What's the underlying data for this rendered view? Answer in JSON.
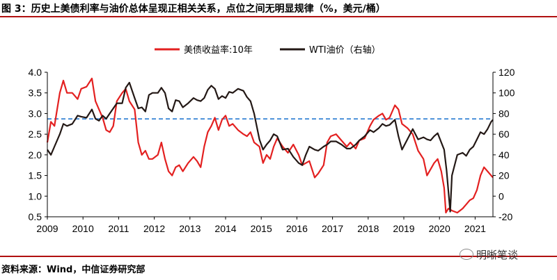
{
  "figure": {
    "title": "图 3：历史上美债利率与油价总体呈现正相关关系，点位之间无明显规律（%，美元/桶）",
    "source": "资料来源：Wind，中信证券研究部",
    "watermark": "明晰笔谈"
  },
  "chart_data": {
    "type": "line",
    "xlabel": "",
    "ylabel": "",
    "x_ticks": [
      "2009",
      "2010",
      "2011",
      "2012",
      "2013",
      "2014",
      "2015",
      "2016",
      "2017",
      "2018",
      "2019",
      "2020",
      "2021"
    ],
    "xlim": [
      2009.0,
      2021.5
    ],
    "ylim_left": [
      0.5,
      4.0
    ],
    "y_ticks_left": [
      "4.0",
      "3.5",
      "3.0",
      "2.5",
      "2.0",
      "1.5",
      "1.0",
      "0.5"
    ],
    "ylim_right": [
      -20,
      120
    ],
    "y_ticks_right": [
      "120",
      "100",
      "80",
      "60",
      "40",
      "20",
      "0",
      "-20"
    ],
    "grid": false,
    "legend_position": "top",
    "reference_line": {
      "axis": "left",
      "value": 2.87,
      "style": "dashed",
      "color": "#4a90d9"
    },
    "series": [
      {
        "name": "美债收益率:10年",
        "axis": "left",
        "color": "#e32020",
        "points": [
          [
            2009.0,
            2.3
          ],
          [
            2009.1,
            2.8
          ],
          [
            2009.2,
            2.7
          ],
          [
            2009.35,
            3.5
          ],
          [
            2009.45,
            3.8
          ],
          [
            2009.55,
            3.5
          ],
          [
            2009.7,
            3.5
          ],
          [
            2009.85,
            3.35
          ],
          [
            2009.95,
            3.6
          ],
          [
            2010.1,
            3.65
          ],
          [
            2010.25,
            3.85
          ],
          [
            2010.35,
            3.3
          ],
          [
            2010.45,
            3.1
          ],
          [
            2010.55,
            2.9
          ],
          [
            2010.65,
            2.6
          ],
          [
            2010.75,
            2.55
          ],
          [
            2010.85,
            2.7
          ],
          [
            2010.95,
            3.3
          ],
          [
            2011.1,
            3.5
          ],
          [
            2011.2,
            3.6
          ],
          [
            2011.3,
            3.3
          ],
          [
            2011.45,
            3.1
          ],
          [
            2011.55,
            2.3
          ],
          [
            2011.65,
            2.0
          ],
          [
            2011.75,
            2.1
          ],
          [
            2011.85,
            1.9
          ],
          [
            2011.95,
            1.9
          ],
          [
            2012.1,
            2.0
          ],
          [
            2012.2,
            2.3
          ],
          [
            2012.3,
            1.9
          ],
          [
            2012.4,
            1.6
          ],
          [
            2012.5,
            1.5
          ],
          [
            2012.6,
            1.7
          ],
          [
            2012.7,
            1.75
          ],
          [
            2012.8,
            1.6
          ],
          [
            2012.95,
            1.8
          ],
          [
            2013.1,
            1.95
          ],
          [
            2013.2,
            1.85
          ],
          [
            2013.3,
            1.7
          ],
          [
            2013.4,
            2.2
          ],
          [
            2013.5,
            2.55
          ],
          [
            2013.6,
            2.7
          ],
          [
            2013.7,
            2.9
          ],
          [
            2013.8,
            2.6
          ],
          [
            2013.9,
            2.85
          ],
          [
            2014.0,
            2.95
          ],
          [
            2014.1,
            2.7
          ],
          [
            2014.2,
            2.75
          ],
          [
            2014.35,
            2.6
          ],
          [
            2014.5,
            2.5
          ],
          [
            2014.6,
            2.45
          ],
          [
            2014.7,
            2.55
          ],
          [
            2014.8,
            2.3
          ],
          [
            2014.95,
            2.2
          ],
          [
            2015.05,
            1.8
          ],
          [
            2015.15,
            2.0
          ],
          [
            2015.25,
            1.9
          ],
          [
            2015.35,
            2.2
          ],
          [
            2015.45,
            2.4
          ],
          [
            2015.6,
            2.2
          ],
          [
            2015.75,
            2.05
          ],
          [
            2015.9,
            2.25
          ],
          [
            2016.05,
            2.0
          ],
          [
            2016.15,
            1.75
          ],
          [
            2016.25,
            1.8
          ],
          [
            2016.35,
            1.85
          ],
          [
            2016.5,
            1.45
          ],
          [
            2016.6,
            1.55
          ],
          [
            2016.75,
            1.75
          ],
          [
            2016.85,
            2.3
          ],
          [
            2016.95,
            2.45
          ],
          [
            2017.1,
            2.5
          ],
          [
            2017.25,
            2.35
          ],
          [
            2017.4,
            2.2
          ],
          [
            2017.5,
            2.3
          ],
          [
            2017.65,
            2.15
          ],
          [
            2017.75,
            2.35
          ],
          [
            2017.9,
            2.4
          ],
          [
            2018.05,
            2.7
          ],
          [
            2018.15,
            2.85
          ],
          [
            2018.3,
            2.95
          ],
          [
            2018.4,
            3.0
          ],
          [
            2018.5,
            2.85
          ],
          [
            2018.6,
            2.9
          ],
          [
            2018.75,
            3.2
          ],
          [
            2018.85,
            3.1
          ],
          [
            2018.95,
            2.75
          ],
          [
            2019.1,
            2.65
          ],
          [
            2019.25,
            2.5
          ],
          [
            2019.4,
            2.1
          ],
          [
            2019.55,
            1.9
          ],
          [
            2019.65,
            1.5
          ],
          [
            2019.75,
            1.65
          ],
          [
            2019.85,
            1.8
          ],
          [
            2019.95,
            1.9
          ],
          [
            2020.05,
            1.6
          ],
          [
            2020.13,
            1.2
          ],
          [
            2020.18,
            0.6
          ],
          [
            2020.25,
            0.7
          ],
          [
            2020.35,
            0.65
          ],
          [
            2020.5,
            0.6
          ],
          [
            2020.65,
            0.7
          ],
          [
            2020.75,
            0.8
          ],
          [
            2020.85,
            0.9
          ],
          [
            2020.95,
            0.95
          ],
          [
            2021.05,
            1.15
          ],
          [
            2021.15,
            1.5
          ],
          [
            2021.25,
            1.7
          ],
          [
            2021.35,
            1.6
          ],
          [
            2021.45,
            1.5
          ],
          [
            2021.5,
            1.45
          ]
        ]
      },
      {
        "name": "WTI油价（右轴）",
        "axis": "right",
        "color": "#231815",
        "points": [
          [
            2009.0,
            45
          ],
          [
            2009.1,
            40
          ],
          [
            2009.2,
            48
          ],
          [
            2009.35,
            60
          ],
          [
            2009.45,
            70
          ],
          [
            2009.55,
            68
          ],
          [
            2009.7,
            70
          ],
          [
            2009.85,
            78
          ],
          [
            2009.95,
            77
          ],
          [
            2010.1,
            76
          ],
          [
            2010.25,
            84
          ],
          [
            2010.35,
            75
          ],
          [
            2010.45,
            73
          ],
          [
            2010.55,
            78
          ],
          [
            2010.65,
            75
          ],
          [
            2010.75,
            80
          ],
          [
            2010.85,
            85
          ],
          [
            2010.95,
            90
          ],
          [
            2011.1,
            90
          ],
          [
            2011.2,
            105
          ],
          [
            2011.3,
            110
          ],
          [
            2011.45,
            95
          ],
          [
            2011.55,
            85
          ],
          [
            2011.65,
            86
          ],
          [
            2011.75,
            82
          ],
          [
            2011.85,
            98
          ],
          [
            2011.95,
            100
          ],
          [
            2012.1,
            100
          ],
          [
            2012.2,
            105
          ],
          [
            2012.3,
            100
          ],
          [
            2012.4,
            85
          ],
          [
            2012.5,
            82
          ],
          [
            2012.6,
            93
          ],
          [
            2012.7,
            92
          ],
          [
            2012.8,
            86
          ],
          [
            2012.95,
            90
          ],
          [
            2013.1,
            95
          ],
          [
            2013.2,
            93
          ],
          [
            2013.3,
            92
          ],
          [
            2013.4,
            95
          ],
          [
            2013.5,
            103
          ],
          [
            2013.6,
            107
          ],
          [
            2013.7,
            104
          ],
          [
            2013.8,
            94
          ],
          [
            2013.9,
            97
          ],
          [
            2014.0,
            95
          ],
          [
            2014.1,
            101
          ],
          [
            2014.2,
            100
          ],
          [
            2014.35,
            104
          ],
          [
            2014.5,
            102
          ],
          [
            2014.6,
            96
          ],
          [
            2014.7,
            92
          ],
          [
            2014.8,
            80
          ],
          [
            2014.95,
            55
          ],
          [
            2015.05,
            45
          ],
          [
            2015.15,
            50
          ],
          [
            2015.25,
            54
          ],
          [
            2015.35,
            60
          ],
          [
            2015.45,
            58
          ],
          [
            2015.6,
            45
          ],
          [
            2015.75,
            46
          ],
          [
            2015.9,
            38
          ],
          [
            2016.05,
            32
          ],
          [
            2016.15,
            30
          ],
          [
            2016.25,
            40
          ],
          [
            2016.35,
            48
          ],
          [
            2016.5,
            45
          ],
          [
            2016.6,
            44
          ],
          [
            2016.75,
            48
          ],
          [
            2016.85,
            50
          ],
          [
            2016.95,
            53
          ],
          [
            2017.1,
            53
          ],
          [
            2017.25,
            50
          ],
          [
            2017.4,
            46
          ],
          [
            2017.5,
            46
          ],
          [
            2017.65,
            50
          ],
          [
            2017.75,
            54
          ],
          [
            2017.9,
            58
          ],
          [
            2018.05,
            64
          ],
          [
            2018.15,
            62
          ],
          [
            2018.3,
            66
          ],
          [
            2018.4,
            70
          ],
          [
            2018.5,
            68
          ],
          [
            2018.6,
            69
          ],
          [
            2018.75,
            74
          ],
          [
            2018.85,
            58
          ],
          [
            2018.95,
            45
          ],
          [
            2019.1,
            55
          ],
          [
            2019.25,
            65
          ],
          [
            2019.4,
            55
          ],
          [
            2019.55,
            57
          ],
          [
            2019.65,
            55
          ],
          [
            2019.75,
            54
          ],
          [
            2019.85,
            58
          ],
          [
            2019.95,
            61
          ],
          [
            2020.05,
            52
          ],
          [
            2020.13,
            45
          ],
          [
            2020.2,
            25
          ],
          [
            2020.3,
            -15
          ],
          [
            2020.35,
            20
          ],
          [
            2020.5,
            40
          ],
          [
            2020.65,
            42
          ],
          [
            2020.75,
            39
          ],
          [
            2020.85,
            45
          ],
          [
            2020.95,
            48
          ],
          [
            2021.05,
            55
          ],
          [
            2021.15,
            62
          ],
          [
            2021.25,
            60
          ],
          [
            2021.35,
            65
          ],
          [
            2021.45,
            72
          ],
          [
            2021.5,
            74
          ]
        ]
      }
    ]
  }
}
